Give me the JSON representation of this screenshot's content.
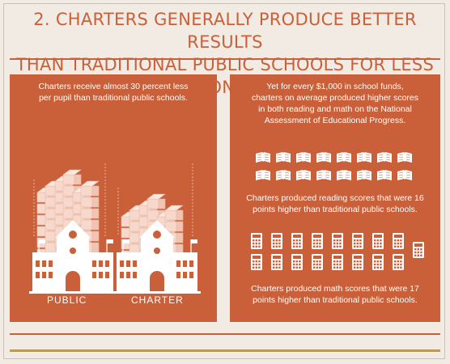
{
  "header": {
    "title_line1": "2. CHARTERS GENERALLY PRODUCE BETTER RESULTS",
    "title_line2": "THAN TRADITIONAL PUBLIC SCHOOLS FOR LESS MONEY"
  },
  "left_panel": {
    "text_line1": "Charters receive almost 30 percent less",
    "text_line2": "per pupil than traditional public schools.",
    "public_label": "PUBLIC",
    "charter_label": "CHARTER"
  },
  "right_panel": {
    "intro_line1": "Yet for every $1,000 in school funds,",
    "intro_line2": "charters on average produced higher scores",
    "intro_line3": "in both reading and math on the National",
    "intro_line4": "Assessment of Educational Progress.",
    "reading_line1": "Charters produced reading scores that were 16",
    "reading_line2": "points higher than traditional public schools.",
    "math_line1": "Charters produced math scores that were 17",
    "math_line2": "points higher than traditional public schools.",
    "book_count": 16,
    "calculator_count": 17
  },
  "colors": {
    "background": "#f1ebe3",
    "accent": "#c9603a",
    "gold": "#b99b5c",
    "white": "#ffffff"
  },
  "icons": [
    "money-stack-icon",
    "school-building-icon",
    "book-icon",
    "calculator-icon"
  ]
}
